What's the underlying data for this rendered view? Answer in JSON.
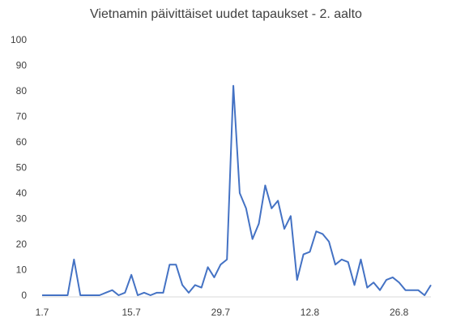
{
  "chart_data": {
    "type": "line",
    "title": "Vietnamin päivittäiset uudet tapaukset - 2. aalto",
    "xlabel": "",
    "ylabel": "",
    "ylim": [
      0,
      100
    ],
    "yticks": [
      0,
      10,
      20,
      30,
      40,
      50,
      60,
      70,
      80,
      90,
      100
    ],
    "xtick_labels": [
      {
        "label": "1.7",
        "index": 0
      },
      {
        "label": "15.7",
        "index": 14
      },
      {
        "label": "29.7",
        "index": 28
      },
      {
        "label": "12.8",
        "index": 42
      },
      {
        "label": "26.8",
        "index": 56
      }
    ],
    "grid": false,
    "color": "#4472C4",
    "series": [
      {
        "values": [
          0,
          0,
          0,
          0,
          0,
          14,
          0,
          0,
          0,
          0,
          1,
          2,
          0,
          1,
          8,
          0,
          1,
          0,
          1,
          1,
          12,
          12,
          4,
          1,
          4,
          3,
          11,
          7,
          12,
          14,
          82,
          40,
          34,
          22,
          28,
          43,
          34,
          37,
          26,
          31,
          6,
          16,
          17,
          25,
          24,
          21,
          12,
          14,
          13,
          4,
          14,
          3,
          5,
          2,
          6,
          7,
          5,
          2,
          2,
          2,
          0,
          4
        ]
      }
    ]
  }
}
